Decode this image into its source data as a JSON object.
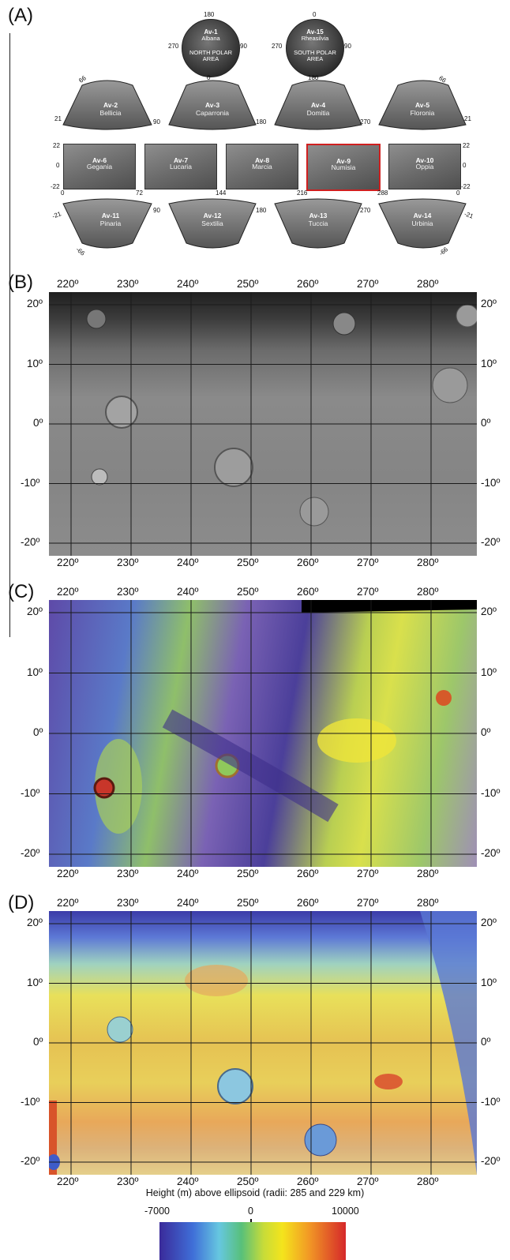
{
  "panels": {
    "a": {
      "letter": "(A)"
    },
    "b": {
      "letter": "(B)"
    },
    "c": {
      "letter": "(C)"
    },
    "d": {
      "letter": "(D)"
    }
  },
  "index_map": {
    "polar_north": {
      "name": "Av-1",
      "sub1": "Albana",
      "sub2": "NORTH POLAR",
      "sub3": "AREA",
      "top": "180",
      "bottom": "0",
      "left": "270",
      "right": "90"
    },
    "polar_south": {
      "name": "Av-15",
      "sub1": "Rheasilvia",
      "sub2": "SOUTH POLAR",
      "sub3": "AREA",
      "top": "0",
      "bottom": "180",
      "left": "270",
      "right": "90"
    },
    "row1": [
      {
        "name": "Av-2",
        "sub": "Bellicia"
      },
      {
        "name": "Av-3",
        "sub": "Caparronia"
      },
      {
        "name": "Av-4",
        "sub": "Domitia"
      },
      {
        "name": "Av-5",
        "sub": "Floronia"
      }
    ],
    "row1_ticks": {
      "lat_top_left": "66",
      "lat_top_right": "66",
      "lat_bottom_left": "21",
      "lat_bottom_right": "21",
      "lon": [
        "90",
        "180",
        "270"
      ]
    },
    "row2": [
      {
        "name": "Av-6",
        "sub": "Gegania"
      },
      {
        "name": "Av-7",
        "sub": "Lucaria"
      },
      {
        "name": "Av-8",
        "sub": "Marcia"
      },
      {
        "name": "Av-9",
        "sub": "Numisia"
      },
      {
        "name": "Av-10",
        "sub": "Oppia"
      }
    ],
    "row2_ticks": {
      "lat_top": "22",
      "lat_mid": "0",
      "lat_bottom": "-22",
      "lon": [
        "0",
        "72",
        "144",
        "216",
        "288",
        "0"
      ]
    },
    "row3": [
      {
        "name": "Av-11",
        "sub": "Pinaria"
      },
      {
        "name": "Av-12",
        "sub": "Sextilia"
      },
      {
        "name": "Av-13",
        "sub": "Tuccia"
      },
      {
        "name": "Av-14",
        "sub": "Urbinia"
      }
    ],
    "row3_ticks": {
      "lat_top_left": "-21",
      "lat_top_right": "-21",
      "lat_bottom_left": "-66",
      "lat_bottom_right": "-66",
      "lon": [
        "90",
        "180",
        "270"
      ]
    },
    "highlight_color": "#d01f1f",
    "highlighted": "Av-9"
  },
  "lon_labels": [
    "220º",
    "230º",
    "240º",
    "250º",
    "260º",
    "270º",
    "280º"
  ],
  "lat_labels": [
    "20º",
    "10º",
    "0º",
    "-10º",
    "-20º"
  ],
  "colorbar": {
    "title": "Height (m) above ellipsoid (radii: 285 and 229 km)",
    "min_label": "-7000",
    "mid_label": "0",
    "max_label": "10000"
  }
}
